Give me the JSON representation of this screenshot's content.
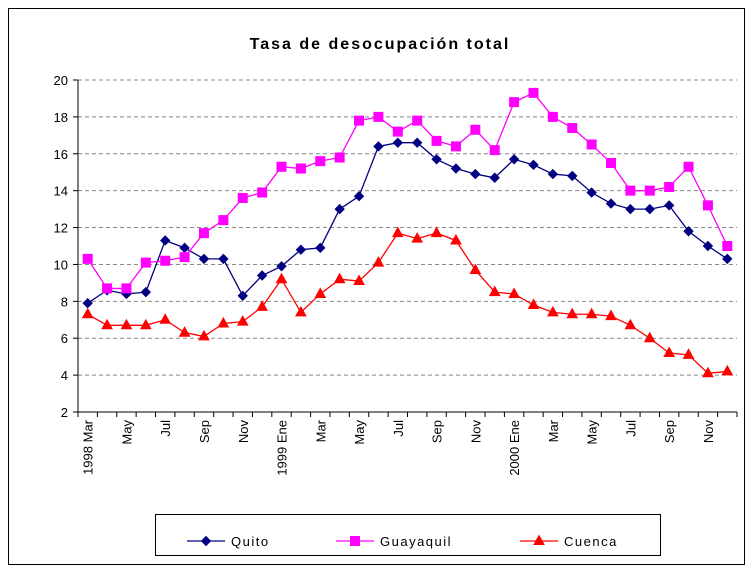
{
  "chart_data": {
    "type": "line",
    "title": "Tasa de desocupación total",
    "categories": [
      "1998 Mar",
      null,
      "May",
      null,
      "Jul",
      null,
      "Sep",
      null,
      "Nov",
      null,
      "1999 Ene",
      null,
      "Mar",
      null,
      "May",
      null,
      "Jul",
      null,
      "Sep",
      null,
      "Nov",
      null,
      "2000 Ene",
      null,
      "Mar",
      null,
      "May",
      null,
      "Jul",
      null,
      "Sep",
      null,
      "Nov",
      null
    ],
    "series": [
      {
        "name": "Quito",
        "color": "#000080",
        "marker": "diamond",
        "values": [
          7.9,
          8.6,
          8.4,
          8.5,
          11.3,
          10.9,
          10.3,
          10.3,
          8.3,
          9.4,
          9.9,
          10.8,
          10.9,
          13.0,
          13.7,
          16.4,
          16.6,
          16.6,
          15.7,
          15.2,
          14.9,
          14.7,
          15.7,
          15.4,
          14.9,
          14.8,
          13.9,
          13.3,
          13.0,
          13.0,
          13.2,
          11.8,
          11.0,
          10.3
        ]
      },
      {
        "name": "Guayaquil",
        "color": "#ff00ff",
        "marker": "square",
        "values": [
          10.3,
          8.7,
          8.7,
          10.1,
          10.2,
          10.4,
          11.7,
          12.4,
          13.6,
          13.9,
          15.3,
          15.2,
          15.6,
          15.8,
          17.8,
          18.0,
          17.2,
          17.8,
          16.7,
          16.4,
          17.3,
          16.2,
          18.8,
          19.3,
          18.0,
          17.4,
          16.5,
          15.5,
          14.0,
          14.0,
          14.2,
          15.3,
          13.2,
          11.0
        ]
      },
      {
        "name": "Cuenca",
        "color": "#ff0000",
        "marker": "triangle",
        "values": [
          7.3,
          6.7,
          6.7,
          6.7,
          7.0,
          6.3,
          6.1,
          6.8,
          6.9,
          7.7,
          9.2,
          7.4,
          8.4,
          9.2,
          9.1,
          10.1,
          11.7,
          11.4,
          11.7,
          11.3,
          9.7,
          8.5,
          8.4,
          7.8,
          7.4,
          7.3,
          7.3,
          7.2,
          6.7,
          6.0,
          5.2,
          5.1,
          4.1,
          4.2
        ]
      }
    ],
    "ylim": [
      2,
      20
    ],
    "yticks": [
      2,
      4,
      6,
      8,
      10,
      12,
      14,
      16,
      18,
      20
    ],
    "grid": true,
    "legend": "bottom"
  }
}
